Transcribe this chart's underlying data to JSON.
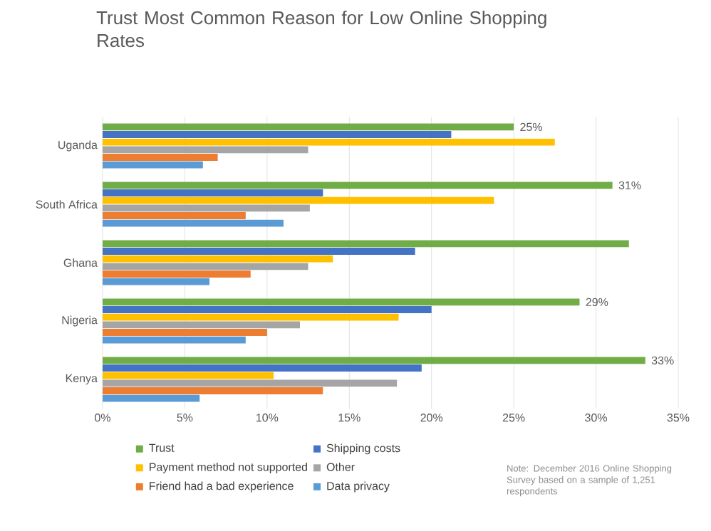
{
  "chart_data": {
    "type": "bar",
    "orientation": "horizontal",
    "title": "Trust Most Common Reason for Low Online Shopping Rates",
    "categories": [
      "Uganda",
      "South Africa",
      "Ghana",
      "Nigeria",
      "Kenya"
    ],
    "series": [
      {
        "name": "Trust",
        "color": "#70ad47",
        "values": [
          25,
          31,
          32,
          29,
          33
        ],
        "value_labels": [
          "25%",
          "31%",
          null,
          "29%",
          "33%"
        ]
      },
      {
        "name": "Shipping costs",
        "color": "#4472c4",
        "values": [
          21.2,
          13.4,
          19,
          20,
          19.4
        ]
      },
      {
        "name": "Payment method not supported",
        "color": "#ffc000",
        "values": [
          27.5,
          23.8,
          14,
          18,
          10.4
        ]
      },
      {
        "name": "Other",
        "color": "#a5a5a5",
        "values": [
          12.5,
          12.6,
          12.5,
          12,
          17.9
        ]
      },
      {
        "name": "Friend had a bad experience",
        "color": "#ed7d31",
        "values": [
          7,
          8.7,
          9,
          10,
          13.4
        ]
      },
      {
        "name": "Data privacy",
        "color": "#5b9bd5",
        "values": [
          6.1,
          11,
          6.5,
          8.7,
          5.9
        ]
      }
    ],
    "xlim": [
      0,
      35
    ],
    "xticks": [
      {
        "value": 0,
        "label": "0%"
      },
      {
        "value": 5,
        "label": "5%"
      },
      {
        "value": 10,
        "label": "10%"
      },
      {
        "value": 15,
        "label": "15%"
      },
      {
        "value": 20,
        "label": "20%"
      },
      {
        "value": 25,
        "label": "25%"
      },
      {
        "value": 30,
        "label": "30%"
      },
      {
        "value": 35,
        "label": "35%"
      }
    ],
    "grid": "x",
    "legend": "bottom",
    "annotations": [
      "Note: December 2016 Online Shopping Survey based on a sample of 1,251 respondents"
    ]
  }
}
